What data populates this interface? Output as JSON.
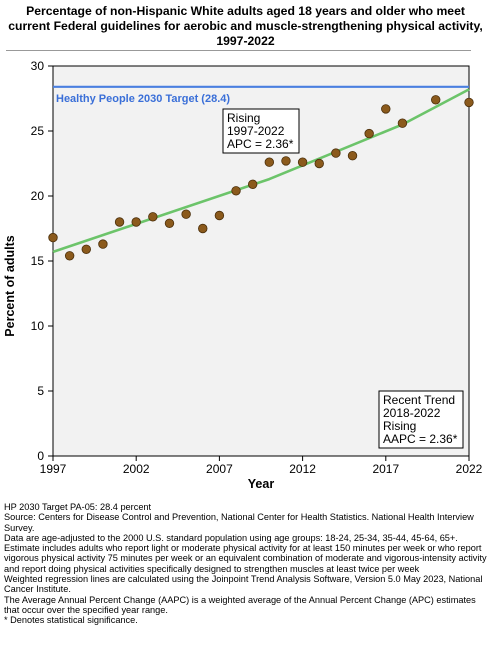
{
  "title_lines": [
    "Percentage of non-Hispanic White adults aged 18 years and older who meet",
    "current Federal guidelines for aerobic and muscle-strengthening physical activity,",
    "1997-2022"
  ],
  "chart_data": {
    "type": "scatter",
    "xlabel": "Year",
    "ylabel": "Percent of adults",
    "xlim": [
      1997,
      2022
    ],
    "ylim": [
      0,
      30
    ],
    "x_ticks": [
      1997,
      2002,
      2007,
      2012,
      2017,
      2022
    ],
    "y_ticks": [
      0,
      5,
      10,
      15,
      20,
      25,
      30
    ],
    "grid": false,
    "colors": {
      "points": "#8b5a1c",
      "point_edge": "#4a2e0a",
      "trend": "#6cc46a",
      "target": "#4a7fe0",
      "plot_background": "#f2f2f2"
    },
    "series": [
      {
        "x": [
          1997,
          1998,
          1999,
          2000,
          2001,
          2002,
          2003,
          2004,
          2005,
          2006,
          2007,
          2008,
          2009,
          2010,
          2011,
          2012,
          2013,
          2014,
          2015,
          2016,
          2017,
          2018,
          2020,
          2022
        ],
        "values": [
          16.8,
          15.4,
          15.9,
          16.3,
          18.0,
          18.0,
          18.4,
          17.9,
          18.6,
          17.5,
          18.5,
          20.4,
          20.9,
          22.6,
          22.7,
          22.6,
          22.5,
          23.3,
          23.1,
          24.8,
          26.7,
          25.6,
          27.4,
          27.2
        ]
      }
    ],
    "trend_line": {
      "x": [
        1997,
        2010,
        2018,
        2022
      ],
      "values": [
        15.7,
        21.3,
        25.5,
        28.2
      ]
    },
    "target": {
      "value": 28.4,
      "label": "Healthy People 2030 Target (28.4)"
    },
    "annotations": [
      {
        "lines": [
          "Rising",
          "1997-2022",
          "APC =  2.36*"
        ]
      },
      {
        "lines": [
          "Recent Trend",
          "2018-2022",
          "Rising",
          "AAPC =  2.36*"
        ]
      }
    ]
  },
  "notes": [
    "HP 2030 Target PA-05: 28.4 percent",
    "Source: Centers for Disease Control and Prevention, National Center for Health Statistics. National Health Interview Survey.",
    "Data are age-adjusted to the 2000 U.S. standard population using age groups: 18-24, 25-34, 35-44, 45-64, 65+.",
    "Estimate includes adults who report light or moderate physical activity for at least 150 minutes per week or who report vigorous physical activity 75 minutes per week or an equivalent combination of moderate and vigorous-intensity activity and report doing physical activities specifically designed to strengthen muscles at least twice per week",
    "Weighted regression lines are calculated using the Joinpoint Trend Analysis Software, Version 5.0 May 2023, National Cancer Institute.",
    "The Average Annual Percent Change (AAPC) is a weighted average of the Annual Percent Change (APC) estimates that occur over the specified year range.",
    "* Denotes statistical significance."
  ]
}
